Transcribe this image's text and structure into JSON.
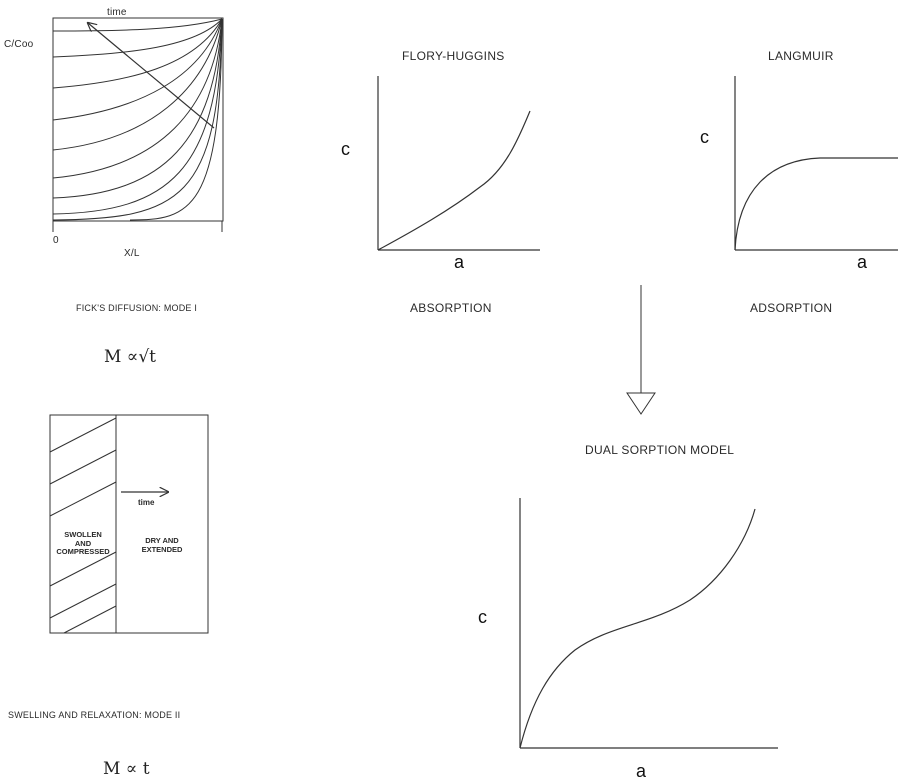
{
  "fick_panel": {
    "y_label": "C/Coo",
    "arrow_label": "time",
    "x_origin": "0",
    "x_label": "X/L",
    "caption": "FICK'S DIFFUSION: MODE I",
    "formula": "M ∝√t"
  },
  "swelling_panel": {
    "left_region": "SWOLLEN\nAND\nCOMPRESSED",
    "right_region": "DRY AND\nEXTENDED",
    "arrow_label": "time",
    "caption": "SWELLING AND RELAXATION: MODE II",
    "formula": "M ∝ t"
  },
  "flory_huggins": {
    "title": "FLORY-HUGGINS",
    "y_label": "c",
    "x_label": "a",
    "caption": "ABSORPTION"
  },
  "langmuir": {
    "title": "LANGMUIR",
    "y_label": "c",
    "x_label": "a",
    "caption": "ADSORPTION"
  },
  "dual_sorption": {
    "title": "DUAL SORPTION MODEL",
    "y_label": "c",
    "x_label": "a"
  },
  "colors": {
    "ink": "#333333",
    "paper": "#ffffff"
  }
}
